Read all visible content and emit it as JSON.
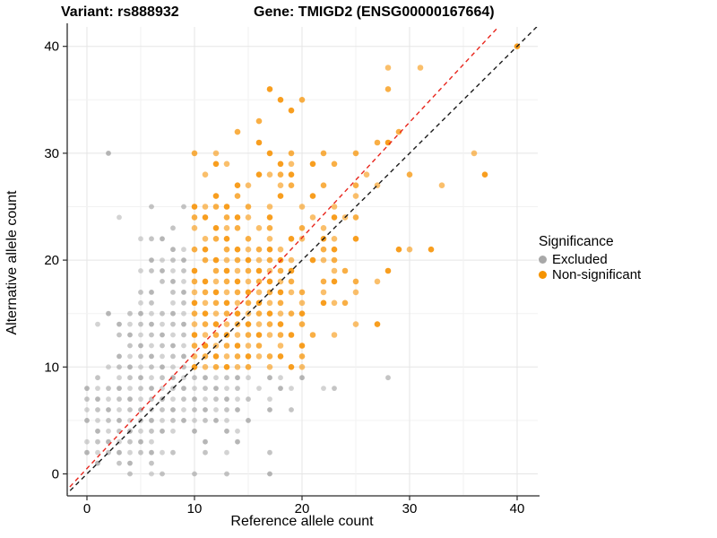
{
  "titles": {
    "variant": "Variant: rs888932",
    "gene": "Gene: TMIGD2 (ENSG00000167664)"
  },
  "axes": {
    "x_label": "Reference allele count",
    "y_label": "Alternative allele count",
    "x_ticks": [
      0,
      10,
      20,
      30,
      40
    ],
    "y_ticks": [
      0,
      10,
      20,
      30,
      40
    ],
    "grid_step": 5
  },
  "legend": {
    "title": "Significance",
    "items": [
      {
        "label": "Excluded",
        "color": "#a8a8a8"
      },
      {
        "label": "Non-significant",
        "color": "#f59300"
      }
    ]
  },
  "colors": {
    "excluded_point": "#9d9d9d",
    "nonsignificant_point": "#f79100",
    "grid_major": "#e5e5e5",
    "grid_minor": "#f2f2f2",
    "axis_line": "#2b2b2b",
    "identity_line": "#1c1c1c",
    "fit_line": "#e8261d"
  },
  "chart_data": {
    "type": "scatter",
    "title": "Variant: rs888932 / Gene: TMIGD2 (ENSG00000167664)",
    "xlabel": "Reference allele count",
    "ylabel": "Alternative allele count",
    "xlim": [
      -2.1,
      42.1
    ],
    "ylim": [
      -2.1,
      42.1
    ],
    "grid": "on",
    "legend_position": "right",
    "identity_line": {
      "slope": 1,
      "intercept": 0,
      "style": "dashed",
      "color": "#1c1c1c"
    },
    "fit_line": {
      "slope": 1.08,
      "intercept": 0.5,
      "style": "dashed",
      "color": "#e8261d"
    },
    "series_names": [
      "Excluded",
      "Non-significant"
    ],
    "rows": [
      {
        "alt": 0,
        "excluded": [
          4,
          6,
          7,
          10,
          13,
          17
        ],
        "nonsig": []
      },
      {
        "alt": 1,
        "excluded": [
          1,
          3,
          4,
          6
        ],
        "nonsig": []
      },
      {
        "alt": 2,
        "excluded": [
          0,
          1,
          2,
          3,
          4,
          5,
          6,
          7,
          8,
          11,
          13,
          17
        ],
        "nonsig": []
      },
      {
        "alt": 3,
        "excluded": [
          0,
          1,
          2,
          3,
          4,
          5,
          6,
          11,
          14
        ],
        "nonsig": []
      },
      {
        "alt": 4,
        "excluded": [
          1,
          2,
          3,
          4,
          5,
          6,
          7,
          8,
          10,
          13,
          14
        ],
        "nonsig": []
      },
      {
        "alt": 5,
        "excluded": [
          0,
          1,
          2,
          3,
          4,
          5,
          6,
          7,
          8,
          9,
          10,
          11,
          12,
          13,
          15
        ],
        "nonsig": []
      },
      {
        "alt": 6,
        "excluded": [
          0,
          1,
          2,
          3,
          4,
          5,
          6,
          7,
          8,
          9,
          10,
          11,
          12,
          13,
          14,
          17,
          19
        ],
        "nonsig": []
      },
      {
        "alt": 7,
        "excluded": [
          0,
          1,
          2,
          3,
          4,
          5,
          6,
          7,
          8,
          9,
          10,
          11,
          12,
          13,
          14,
          15,
          17
        ],
        "nonsig": []
      },
      {
        "alt": 8,
        "excluded": [
          0,
          1,
          2,
          3,
          4,
          5,
          6,
          7,
          8,
          9,
          10,
          11,
          12,
          13,
          14,
          16,
          18,
          19,
          22,
          23
        ],
        "nonsig": []
      },
      {
        "alt": 9,
        "excluded": [
          1,
          3,
          4,
          5,
          6,
          7,
          8,
          9,
          10,
          11,
          12,
          13,
          14,
          15,
          17,
          18,
          20,
          28
        ],
        "nonsig": []
      },
      {
        "alt": 10,
        "excluded": [
          2,
          3,
          4,
          5,
          6,
          7,
          8,
          9
        ],
        "nonsig": [
          10,
          11,
          12,
          13,
          14,
          15,
          17,
          19,
          20
        ]
      },
      {
        "alt": 11,
        "excluded": [
          3,
          4,
          5,
          6,
          7,
          8,
          9
        ],
        "nonsig": [
          10,
          11,
          12,
          13,
          14,
          15,
          16,
          17,
          18,
          20
        ]
      },
      {
        "alt": 12,
        "excluded": [
          4,
          5,
          6,
          7,
          8,
          9
        ],
        "nonsig": [
          10,
          11,
          12,
          13,
          14,
          15,
          16,
          18,
          20
        ]
      },
      {
        "alt": 13,
        "excluded": [
          3,
          4,
          5,
          6,
          7,
          8,
          9
        ],
        "nonsig": [
          10,
          11,
          12,
          13,
          14,
          15,
          16,
          17,
          18,
          19,
          21,
          23
        ]
      },
      {
        "alt": 14,
        "excluded": [
          1,
          3,
          4,
          5,
          6,
          7,
          8,
          9
        ],
        "nonsig": [
          10,
          11,
          12,
          13,
          14,
          15,
          16,
          17,
          18,
          20,
          25,
          27
        ]
      },
      {
        "alt": 15,
        "excluded": [
          2,
          4,
          5,
          6,
          7,
          8,
          9
        ],
        "nonsig": [
          10,
          11,
          12,
          13,
          14,
          15,
          16,
          17,
          18,
          19,
          20
        ]
      },
      {
        "alt": 16,
        "excluded": [
          5,
          6,
          8,
          9
        ],
        "nonsig": [
          10,
          11,
          12,
          13,
          14,
          15,
          16,
          17,
          18,
          20,
          22,
          23,
          24
        ]
      },
      {
        "alt": 17,
        "excluded": [
          5,
          6,
          8,
          9
        ],
        "nonsig": [
          10,
          11,
          12,
          13,
          14,
          15,
          16,
          17,
          18,
          19,
          20,
          22,
          25
        ]
      },
      {
        "alt": 18,
        "excluded": [
          7,
          8,
          9
        ],
        "nonsig": [
          10,
          11,
          12,
          13,
          14,
          15,
          16,
          17,
          18,
          19,
          22,
          23,
          25,
          27
        ]
      },
      {
        "alt": 19,
        "excluded": [
          5,
          6,
          7,
          8,
          9
        ],
        "nonsig": [
          10,
          12,
          13,
          14,
          15,
          16,
          17,
          18,
          19,
          23,
          24,
          28
        ]
      },
      {
        "alt": 20,
        "excluded": [
          6,
          7,
          8,
          9
        ],
        "nonsig": [
          11,
          12,
          13,
          14,
          15,
          16,
          17,
          18,
          19,
          21,
          22,
          23
        ]
      },
      {
        "alt": 21,
        "excluded": [
          8,
          9
        ],
        "nonsig": [
          10,
          11,
          13,
          14,
          15,
          16,
          17,
          18,
          22,
          23,
          29,
          30,
          32
        ]
      },
      {
        "alt": 22,
        "excluded": [
          5,
          6,
          7
        ],
        "nonsig": [
          11,
          12,
          13,
          15,
          17,
          19,
          20,
          22,
          23,
          25
        ]
      },
      {
        "alt": 23,
        "excluded": [
          8
        ],
        "nonsig": [
          10,
          12,
          13,
          14,
          16,
          17,
          20,
          22
        ]
      },
      {
        "alt": 24,
        "excluded": [
          3
        ],
        "nonsig": [
          10,
          11,
          13,
          14,
          15,
          17,
          21,
          23,
          24,
          25
        ]
      },
      {
        "alt": 25,
        "excluded": [
          6,
          9
        ],
        "nonsig": [
          10,
          11,
          12,
          13,
          15,
          17,
          20,
          23
        ]
      },
      {
        "alt": 26,
        "excluded": [],
        "nonsig": [
          12,
          14,
          18,
          21,
          25
        ]
      },
      {
        "alt": 27,
        "excluded": [],
        "nonsig": [
          14,
          15,
          18,
          19,
          22,
          25,
          27,
          33
        ]
      },
      {
        "alt": 28,
        "excluded": [],
        "nonsig": [
          11,
          16,
          17,
          18,
          19,
          26,
          30,
          37
        ]
      },
      {
        "alt": 29,
        "excluded": [],
        "nonsig": [
          12,
          13,
          18,
          19,
          21,
          23
        ]
      },
      {
        "alt": 30,
        "excluded": [
          2
        ],
        "nonsig": [
          10,
          12,
          17,
          19,
          22,
          25,
          36
        ]
      },
      {
        "alt": 31,
        "excluded": [],
        "nonsig": [
          16,
          27,
          28
        ]
      },
      {
        "alt": 32,
        "excluded": [],
        "nonsig": [
          14,
          29
        ]
      },
      {
        "alt": 33,
        "excluded": [],
        "nonsig": [
          16
        ]
      },
      {
        "alt": 34,
        "excluded": [],
        "nonsig": [
          19
        ]
      },
      {
        "alt": 35,
        "excluded": [],
        "nonsig": [
          18,
          20
        ]
      },
      {
        "alt": 36,
        "excluded": [],
        "nonsig": [
          17,
          28
        ]
      },
      {
        "alt": 38,
        "excluded": [],
        "nonsig": [
          28,
          31
        ]
      },
      {
        "alt": 40,
        "excluded": [],
        "nonsig": [
          40
        ]
      }
    ]
  }
}
